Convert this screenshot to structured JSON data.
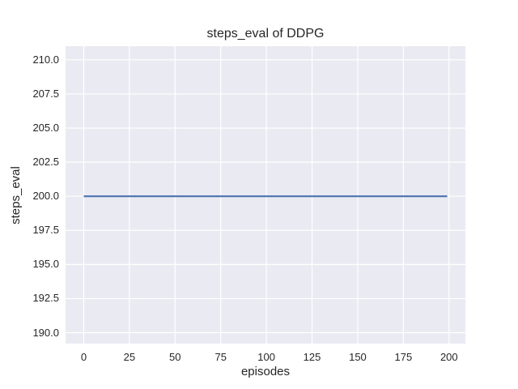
{
  "figure": {
    "title": "steps_eval of DDPG",
    "xlabel": "episodes",
    "ylabel": "steps_eval"
  },
  "style": {
    "figure_bg": "#ffffff",
    "axes_bg": "#eaeaf2",
    "grid_color": "#ffffff",
    "line_color": "#4c72b0",
    "text_color": "#262626"
  },
  "chart_data": {
    "type": "line",
    "title": "steps_eval of DDPG",
    "xlabel": "episodes",
    "ylabel": "steps_eval",
    "xlim": [
      -9.95,
      208.95
    ],
    "ylim": [
      189.2,
      211.0
    ],
    "x_ticks": [
      0,
      25,
      50,
      75,
      100,
      125,
      150,
      175,
      200
    ],
    "y_ticks": [
      190.0,
      192.5,
      195.0,
      197.5,
      200.0,
      202.5,
      205.0,
      207.5,
      210.0
    ],
    "grid": true,
    "legend_position": "none",
    "series": [
      {
        "name": "steps_eval",
        "x": [
          0,
          199
        ],
        "y": [
          200.0,
          200.0
        ]
      }
    ]
  }
}
